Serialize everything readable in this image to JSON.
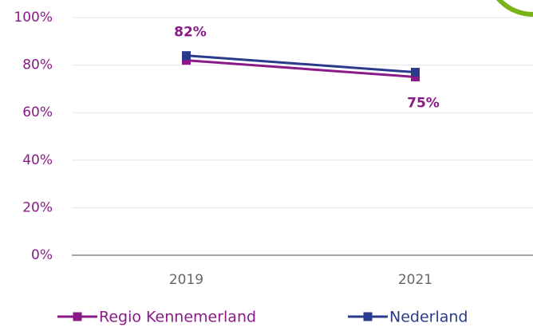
{
  "chart_data": {
    "type": "line",
    "categories": [
      "2019",
      "2021"
    ],
    "series": [
      {
        "name": "Regio Kennemerland",
        "color": "#8b1a89",
        "values": [
          82,
          75
        ],
        "value_labels": [
          "82%",
          "75%"
        ]
      },
      {
        "name": "Nederland",
        "color": "#2a3a8c",
        "values": [
          84,
          77
        ]
      }
    ],
    "ylim": [
      0,
      100
    ],
    "yticks": [
      {
        "value": 0,
        "label": "0%"
      },
      {
        "value": 20,
        "label": "20%"
      },
      {
        "value": 40,
        "label": "40%"
      },
      {
        "value": 60,
        "label": "60%"
      },
      {
        "value": 80,
        "label": "80%"
      },
      {
        "value": 100,
        "label": "100%"
      }
    ],
    "grid": true
  }
}
